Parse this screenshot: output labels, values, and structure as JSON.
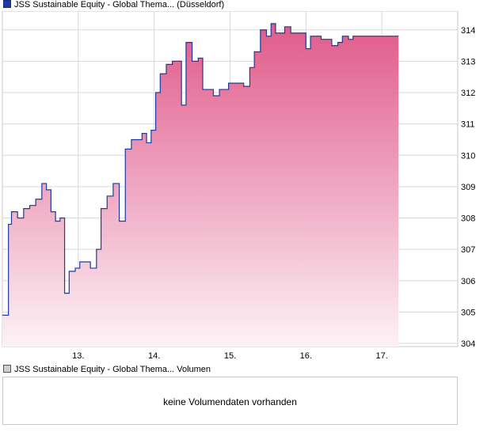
{
  "legend": {
    "price_label": "JSS Sustainable Equity - Global Thema... (Düsseldorf)",
    "volume_label": "JSS Sustainable Equity - Global Thema... Volumen"
  },
  "volume": {
    "message": "keine Volumendaten vorhanden"
  },
  "colors": {
    "line": "#1f3a9e",
    "fill_top": "#e05a8a",
    "fill_bottom": "#fdf2f6",
    "grid": "#d9d9d9"
  },
  "chart_data": {
    "type": "area",
    "title": "",
    "xlabel": "",
    "ylabel": "",
    "ylim": [
      303.9,
      314.6
    ],
    "xlim": [
      12.0,
      18.0
    ],
    "yticks": [
      304,
      305,
      306,
      307,
      308,
      309,
      310,
      311,
      312,
      313,
      314
    ],
    "xticks": [
      {
        "value": 13,
        "label": "13."
      },
      {
        "value": 14,
        "label": "14."
      },
      {
        "value": 15,
        "label": "15."
      },
      {
        "value": 16,
        "label": "16."
      },
      {
        "value": 17,
        "label": "17."
      }
    ],
    "grid": true,
    "series": [
      {
        "x": [
          12.0,
          12.08,
          12.12,
          12.2,
          12.28,
          12.36,
          12.44,
          12.52,
          12.58,
          12.64,
          12.7,
          12.76,
          12.82,
          12.88,
          12.96,
          13.02,
          13.08,
          13.16,
          13.24,
          13.3,
          13.38,
          13.46,
          13.54,
          13.62,
          13.7,
          13.78,
          13.84,
          13.9,
          13.96,
          14.02,
          14.08,
          14.16,
          14.24,
          14.3,
          14.36,
          14.42,
          14.5,
          14.58,
          14.64,
          14.7,
          14.78,
          14.86,
          14.92,
          14.98,
          15.04,
          15.1,
          15.18,
          15.26,
          15.32,
          15.4,
          15.48,
          15.54,
          15.6,
          15.66,
          15.72,
          15.8,
          15.86,
          15.92,
          16.0,
          16.06,
          16.14,
          16.2,
          16.28,
          16.34,
          16.42,
          16.48,
          16.56,
          16.62,
          16.7,
          16.78,
          16.86,
          16.92,
          16.98,
          17.04,
          17.1,
          17.16,
          17.22
        ],
        "values": [
          304.9,
          307.8,
          308.2,
          308.0,
          308.3,
          308.4,
          308.6,
          309.1,
          308.9,
          308.2,
          307.9,
          308.0,
          305.6,
          306.3,
          306.4,
          306.6,
          306.6,
          306.4,
          307.0,
          308.3,
          308.7,
          309.1,
          307.9,
          310.2,
          310.5,
          310.5,
          310.7,
          310.4,
          310.8,
          312.0,
          312.6,
          312.9,
          313.0,
          313.0,
          311.6,
          313.6,
          313.0,
          313.1,
          312.1,
          312.1,
          311.9,
          312.1,
          312.1,
          312.3,
          312.3,
          312.3,
          312.2,
          312.8,
          313.3,
          314.0,
          313.8,
          314.2,
          313.9,
          313.9,
          314.1,
          313.9,
          313.9,
          313.9,
          313.4,
          313.8,
          313.8,
          313.7,
          313.7,
          313.5,
          313.6,
          313.8,
          313.7,
          313.8,
          313.8,
          313.8,
          313.8,
          313.8,
          313.8,
          313.8,
          313.8,
          313.8,
          313.8
        ]
      }
    ]
  }
}
